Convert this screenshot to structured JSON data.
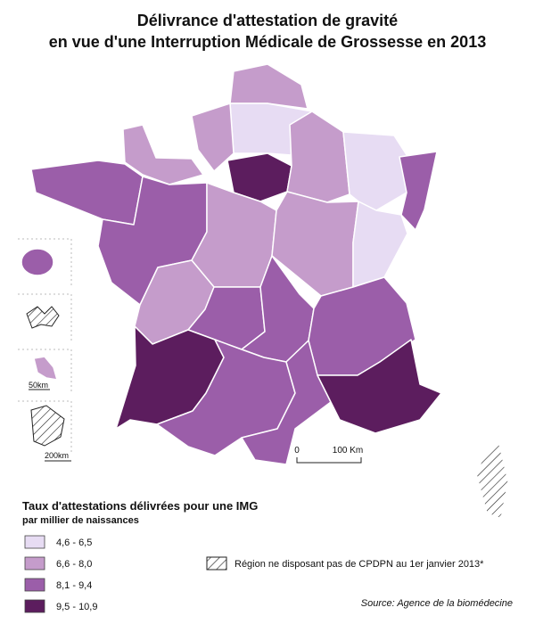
{
  "title": [
    "Délivrance d'attestation de gravité",
    "en vue d'une Interruption Médicale de Grossesse en 2013"
  ],
  "legend": {
    "title": "Taux d'attestations délivrées pour une IMG",
    "subtitle": "par millier de naissances",
    "items": [
      {
        "label": "4,6 - 6,5",
        "color": "#e7dcf3"
      },
      {
        "label": "6,6 - 8,0",
        "color": "#c59ccb"
      },
      {
        "label": "8,1 - 9,4",
        "color": "#9b5ea9"
      },
      {
        "label": "9,5 - 10,9",
        "color": "#5c1d5e"
      }
    ]
  },
  "hatch_note": "Région ne disposant pas de CPDPN au 1er janvier 2013*",
  "source": "Source: Agence de la biomédecine",
  "scale": {
    "main": [
      "0",
      "100 Km"
    ],
    "insets": [
      "50km",
      "200km"
    ]
  }
}
